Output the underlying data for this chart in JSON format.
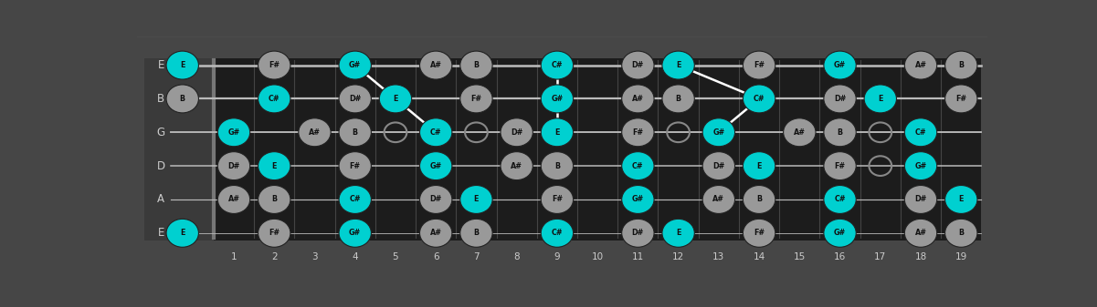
{
  "strings": [
    "E",
    "B",
    "G",
    "D",
    "A",
    "E"
  ],
  "num_frets": 19,
  "bg_color": "#464646",
  "fretboard_color": "#1c1c1c",
  "sidebar_color": "#3a3a3a",
  "string_color": "#bbbbbb",
  "fret_color": "#444444",
  "nut_color": "#777777",
  "note_bg_normal": "#999999",
  "note_bg_highlight": "#00d0d0",
  "note_text_color": "#111111",
  "label_color": "#cccccc",
  "open_circle_color": "#888888",
  "line_color": "#ffffff",
  "notes_by_string": {
    "E_high": [
      null,
      "F#",
      null,
      "G#",
      null,
      "A#",
      "B",
      null,
      "C#",
      null,
      "D#",
      "E",
      null,
      "F#",
      null,
      "G#",
      null,
      "A#",
      "B"
    ],
    "B": [
      null,
      "C#",
      null,
      "D#",
      "E",
      null,
      "F#",
      null,
      "G#",
      null,
      "A#",
      "B",
      null,
      "C#",
      null,
      "D#",
      "E",
      null,
      "F#"
    ],
    "G": [
      "G#",
      null,
      "A#",
      "B",
      null,
      "C#",
      null,
      "D#",
      "E",
      null,
      "F#",
      null,
      "G#",
      null,
      "A#",
      "B",
      null,
      "C#",
      null
    ],
    "D": [
      "D#",
      "E",
      null,
      "F#",
      null,
      "G#",
      null,
      "A#",
      "B",
      null,
      "C#",
      null,
      "D#",
      "E",
      null,
      "F#",
      null,
      "G#",
      null
    ],
    "A": [
      "A#",
      "B",
      null,
      "C#",
      null,
      "D#",
      "E",
      null,
      "F#",
      null,
      "G#",
      null,
      "A#",
      "B",
      null,
      "C#",
      null,
      "D#",
      "E"
    ],
    "E_low": [
      null,
      "F#",
      null,
      "G#",
      null,
      "A#",
      "B",
      null,
      "C#",
      null,
      "D#",
      "E",
      null,
      "F#",
      null,
      "G#",
      null,
      "A#",
      "B"
    ]
  },
  "open_notes": {
    "E_high": "E",
    "B": "B",
    "G": null,
    "D": null,
    "A": null,
    "E_low": "E"
  },
  "highlighted_notes": [
    "C#",
    "E",
    "G#"
  ],
  "hollow_positions": {
    "G": [
      3,
      5,
      7,
      12,
      17
    ],
    "D": [
      11,
      17
    ],
    "B": [
      12
    ]
  },
  "highlight_connections": [
    [
      [
        0,
        4
      ],
      [
        1,
        5
      ]
    ],
    [
      [
        1,
        5
      ],
      [
        2,
        6
      ]
    ],
    [
      [
        0,
        9
      ],
      [
        1,
        9
      ]
    ],
    [
      [
        1,
        9
      ],
      [
        2,
        9
      ]
    ],
    [
      [
        0,
        12
      ],
      [
        1,
        14
      ]
    ],
    [
      [
        1,
        14
      ],
      [
        2,
        13
      ]
    ]
  ]
}
